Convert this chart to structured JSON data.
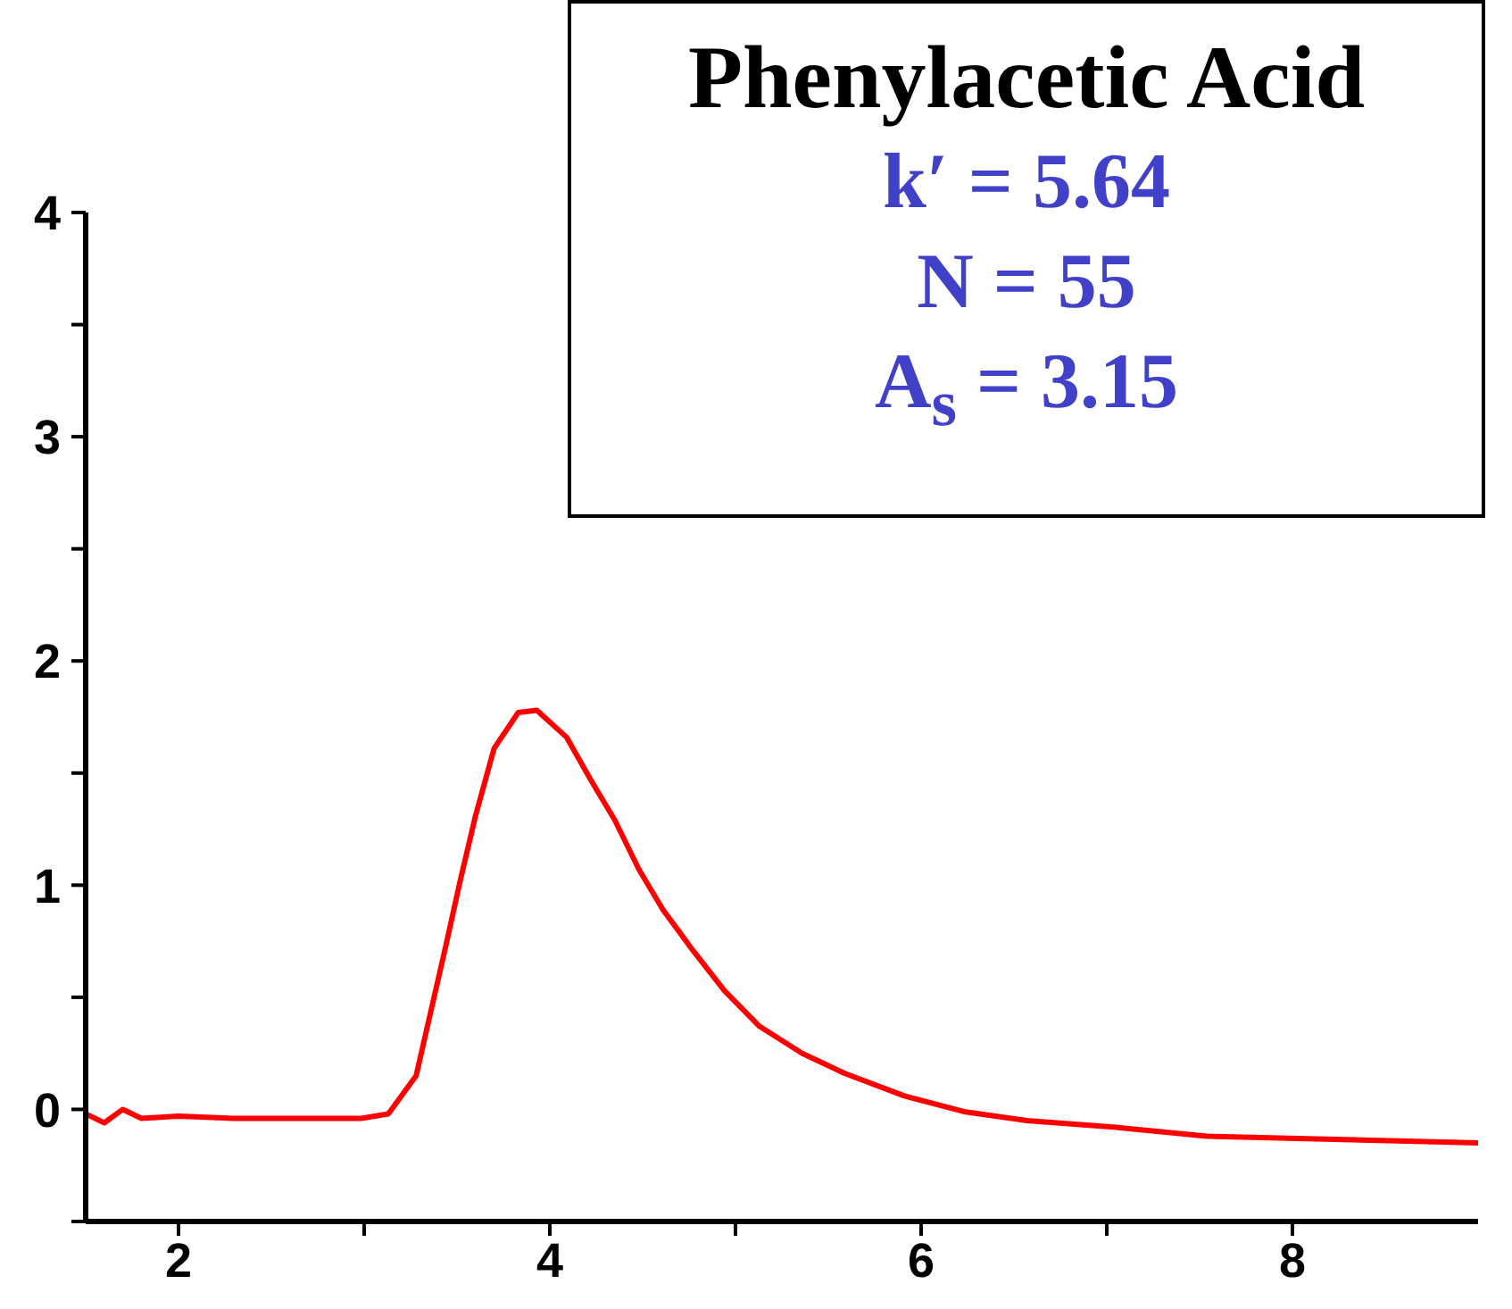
{
  "chart_data": {
    "type": "line",
    "title": "Phenylacetic Acid",
    "annotations": [
      "k′ = 5.64",
      "N = 55",
      "A$_{s}$ = 3.15"
    ],
    "series": [
      {
        "color": "#ff0000",
        "x": [
          1.5,
          1.6,
          1.7,
          1.8,
          2.0,
          2.3,
          2.6,
          2.985,
          3.13,
          3.28,
          3.36,
          3.44,
          3.52,
          3.6,
          3.7,
          3.83,
          3.93,
          4.09,
          4.22,
          4.35,
          4.48,
          4.61,
          4.77,
          4.94,
          5.13,
          5.36,
          5.59,
          5.91,
          6.23,
          6.57,
          7.05,
          7.54,
          8.03,
          8.52,
          9.0
        ],
        "values": [
          -0.02,
          -0.06,
          0.0,
          -0.04,
          -0.03,
          -0.04,
          -0.04,
          -0.04,
          -0.02,
          0.15,
          0.44,
          0.73,
          1.03,
          1.31,
          1.61,
          1.77,
          1.78,
          1.66,
          1.47,
          1.29,
          1.07,
          0.89,
          0.71,
          0.53,
          0.37,
          0.25,
          0.16,
          0.06,
          -0.01,
          -0.05,
          -0.08,
          -0.12,
          -0.13,
          -0.14,
          -0.15
        ]
      }
    ],
    "xlim": [
      1.5,
      9
    ],
    "xticks": [
      2,
      {
        "value": 3,
        "label": null
      },
      4,
      {
        "value": 5,
        "label": null
      },
      6,
      {
        "value": 7,
        "label": null
      },
      8
    ],
    "ylim": [
      -0.5,
      4
    ],
    "yticks": [
      {
        "value": -0.5,
        "label": null
      },
      0,
      {
        "value": 0.5,
        "label": null
      },
      1,
      {
        "value": 1.5,
        "label": null
      },
      2,
      {
        "value": 2.5,
        "label": null
      },
      3,
      {
        "value": 3.5,
        "label": null
      },
      4
    ],
    "grid": false,
    "legend": false,
    "marker": "none",
    "line_style": "solid"
  }
}
